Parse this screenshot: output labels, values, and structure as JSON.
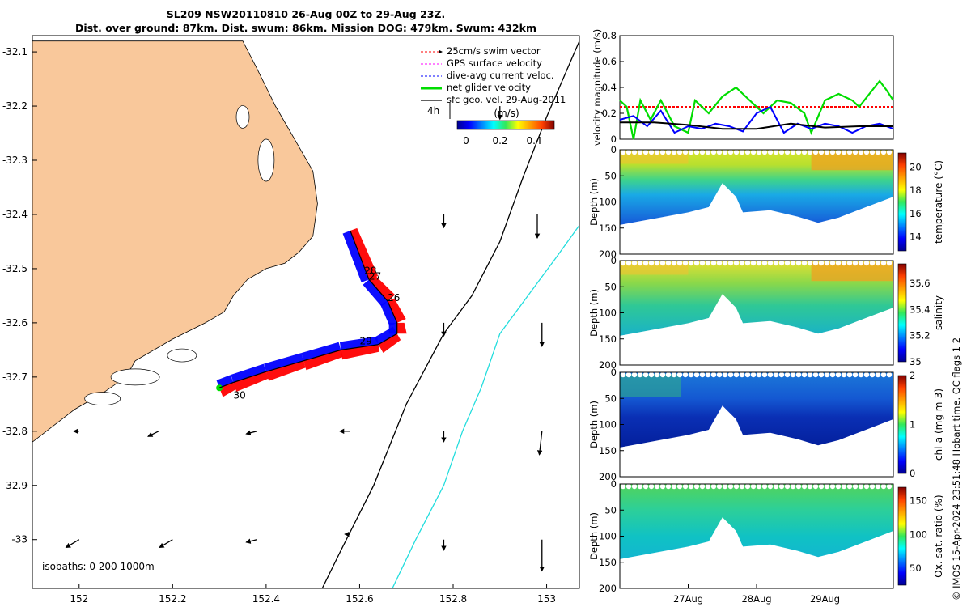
{
  "title": {
    "line1": "SL209 NSW20110810 26-Aug 00Z to 29-Aug 23Z.",
    "line2": "Dist. over ground: 87km. Dist. swum: 86km. Mission DOG: 479km. Swum: 432km"
  },
  "legend": {
    "items": [
      {
        "label": "25cm/s swim vector",
        "color": "#ff0000"
      },
      {
        "label": "GPS surface velocity",
        "color": "#ff00ff"
      },
      {
        "label": "dive-avg current veloc.",
        "color": "#0000ff"
      },
      {
        "label": "net glider velocity",
        "color": "#00dd00"
      },
      {
        "label": "sfc geo. vel. 29-Aug-2011",
        "color": "#000000"
      }
    ],
    "time_label": "4h",
    "colorbar_title": "(m/s)",
    "colorbar_ticks": [
      "0",
      "0.2",
      "0.4"
    ]
  },
  "map_footer": "isobaths: 0   200  1000m",
  "credit": "© IMOS 15-Apr-2024 23:51:48 Hobart time. QC flags 1  2",
  "colors": {
    "land": "#f9c89b",
    "track_red": "#ff0000",
    "track_blue": "#0000ff",
    "isobath_200": "#000000",
    "isobath_1000": "#22dddd"
  },
  "chart_data": [
    {
      "type": "map",
      "name": "glider track map",
      "xlim": [
        151.9,
        153.07
      ],
      "ylim": [
        -33.09,
        -32.07
      ],
      "x_ticks": [
        "152",
        "152.2",
        "152.4",
        "152.6",
        "152.8",
        "153"
      ],
      "x_tick_values": [
        152,
        152.2,
        152.4,
        152.6,
        152.8,
        153
      ],
      "y_ticks": [
        "-32.1",
        "-32.2",
        "-32.3",
        "-32.4",
        "-32.5",
        "-32.6",
        "-32.7",
        "-32.8",
        "-32.9",
        "-33"
      ],
      "y_tick_values": [
        -32.1,
        -32.2,
        -32.3,
        -32.4,
        -32.5,
        -32.6,
        -32.7,
        -32.8,
        -32.9,
        -33
      ],
      "coastline": [
        [
          151.9,
          -32.08
        ],
        [
          152.35,
          -32.08
        ],
        [
          152.38,
          -32.13
        ],
        [
          152.42,
          -32.2
        ],
        [
          152.46,
          -32.26
        ],
        [
          152.5,
          -32.32
        ],
        [
          152.51,
          -32.38
        ],
        [
          152.5,
          -32.44
        ],
        [
          152.47,
          -32.47
        ],
        [
          152.44,
          -32.49
        ],
        [
          152.4,
          -32.5
        ],
        [
          152.36,
          -32.52
        ],
        [
          152.33,
          -32.55
        ],
        [
          152.31,
          -32.58
        ],
        [
          152.27,
          -32.6
        ],
        [
          152.2,
          -32.63
        ],
        [
          152.12,
          -32.67
        ],
        [
          152.1,
          -32.7
        ],
        [
          152.05,
          -32.73
        ],
        [
          151.99,
          -32.76
        ],
        [
          151.9,
          -32.82
        ]
      ],
      "track": [
        [
          152.58,
          -32.43
        ],
        [
          152.62,
          -32.52
        ],
        [
          152.66,
          -32.56
        ],
        [
          152.68,
          -32.6
        ],
        [
          152.68,
          -32.62
        ],
        [
          152.64,
          -32.64
        ],
        [
          152.56,
          -32.65
        ],
        [
          152.48,
          -32.67
        ],
        [
          152.4,
          -32.69
        ],
        [
          152.33,
          -32.71
        ],
        [
          152.3,
          -32.72
        ]
      ],
      "track_labels": [
        {
          "text": "28",
          "lon": 152.61,
          "lat": -32.51
        },
        {
          "text": "27",
          "lon": 152.62,
          "lat": -32.52
        },
        {
          "text": "26",
          "lon": 152.66,
          "lat": -32.56
        },
        {
          "text": "29",
          "lon": 152.6,
          "lat": -32.64
        },
        {
          "text": "30",
          "lon": 152.33,
          "lat": -32.74
        }
      ],
      "isobath_200": [
        [
          152.52,
          -33.09
        ],
        [
          152.56,
          -33.02
        ],
        [
          152.63,
          -32.9
        ],
        [
          152.7,
          -32.75
        ],
        [
          152.78,
          -32.62
        ],
        [
          152.84,
          -32.55
        ],
        [
          152.9,
          -32.45
        ],
        [
          152.95,
          -32.33
        ],
        [
          153.0,
          -32.22
        ],
        [
          153.05,
          -32.12
        ],
        [
          153.07,
          -32.08
        ]
      ],
      "isobath_1000": [
        [
          152.67,
          -33.09
        ],
        [
          152.72,
          -33.0
        ],
        [
          152.78,
          -32.9
        ],
        [
          152.82,
          -32.8
        ],
        [
          152.86,
          -32.72
        ],
        [
          152.9,
          -32.62
        ],
        [
          152.96,
          -32.55
        ],
        [
          153.02,
          -32.48
        ],
        [
          153.07,
          -32.42
        ]
      ],
      "surface_vectors": [
        {
          "lon": 152.0,
          "lat": -33.0,
          "u": -0.05,
          "v": -0.03
        },
        {
          "lon": 152.2,
          "lat": -33.0,
          "u": -0.05,
          "v": -0.03
        },
        {
          "lon": 152.38,
          "lat": -33.0,
          "u": -0.04,
          "v": -0.01
        },
        {
          "lon": 152.58,
          "lat": -32.99,
          "u": -0.02,
          "v": 0.0
        },
        {
          "lon": 152.78,
          "lat": -33.0,
          "u": 0.0,
          "v": -0.04
        },
        {
          "lon": 152.99,
          "lat": -33.0,
          "u": 0.0,
          "v": -0.12
        },
        {
          "lon": 152.0,
          "lat": -32.8,
          "u": -0.02,
          "v": 0.0
        },
        {
          "lon": 152.17,
          "lat": -32.8,
          "u": -0.04,
          "v": -0.02
        },
        {
          "lon": 152.38,
          "lat": -32.8,
          "u": -0.04,
          "v": -0.01
        },
        {
          "lon": 152.58,
          "lat": -32.8,
          "u": -0.04,
          "v": 0.0
        },
        {
          "lon": 152.78,
          "lat": -32.8,
          "u": 0.0,
          "v": -0.04
        },
        {
          "lon": 152.99,
          "lat": -32.8,
          "u": -0.01,
          "v": -0.09
        },
        {
          "lon": 152.78,
          "lat": -32.6,
          "u": 0.0,
          "v": -0.05
        },
        {
          "lon": 152.99,
          "lat": -32.6,
          "u": 0.0,
          "v": -0.09
        },
        {
          "lon": 152.98,
          "lat": -32.4,
          "u": 0.0,
          "v": -0.09
        },
        {
          "lon": 152.78,
          "lat": -32.4,
          "u": 0.0,
          "v": -0.05
        },
        {
          "lon": 152.9,
          "lat": -32.2,
          "u": 0.0,
          "v": -0.05
        }
      ]
    },
    {
      "type": "line",
      "name": "velocity",
      "ylabel": "velocity magnitude (m/s)",
      "ylim": [
        0,
        0.8
      ],
      "y_ticks": [
        "0",
        "0.2",
        "0.4",
        "0.6",
        "0.8"
      ],
      "xlim": [
        0,
        4
      ],
      "series": [
        {
          "label": "swim",
          "color": "#ff0000",
          "dashed": true,
          "x": [
            0,
            4
          ],
          "y": [
            0.25,
            0.25
          ]
        },
        {
          "label": "net",
          "color": "#00dd00",
          "x": [
            0,
            0.1,
            0.2,
            0.3,
            0.45,
            0.6,
            0.8,
            1.0,
            1.1,
            1.3,
            1.5,
            1.7,
            1.9,
            2.1,
            2.3,
            2.5,
            2.7,
            2.8,
            3.0,
            3.2,
            3.4,
            3.5,
            3.65,
            3.8,
            3.9,
            4.0
          ],
          "y": [
            0.3,
            0.25,
            0.0,
            0.3,
            0.15,
            0.3,
            0.1,
            0.05,
            0.3,
            0.2,
            0.33,
            0.4,
            0.3,
            0.2,
            0.3,
            0.28,
            0.2,
            0.05,
            0.3,
            0.35,
            0.3,
            0.25,
            0.35,
            0.45,
            0.38,
            0.3
          ]
        },
        {
          "label": "current",
          "color": "#0000ff",
          "x": [
            0,
            0.2,
            0.4,
            0.6,
            0.8,
            1.0,
            1.2,
            1.4,
            1.6,
            1.8,
            2.0,
            2.2,
            2.4,
            2.6,
            2.8,
            3.0,
            3.2,
            3.4,
            3.6,
            3.8,
            4.0
          ],
          "y": [
            0.15,
            0.18,
            0.1,
            0.22,
            0.05,
            0.1,
            0.08,
            0.12,
            0.1,
            0.06,
            0.2,
            0.25,
            0.05,
            0.12,
            0.08,
            0.12,
            0.1,
            0.05,
            0.1,
            0.12,
            0.08
          ]
        },
        {
          "label": "surface",
          "color": "#000000",
          "x": [
            0,
            0.5,
            1.0,
            1.5,
            2.0,
            2.5,
            3.0,
            3.5,
            4.0
          ],
          "y": [
            0.13,
            0.13,
            0.11,
            0.08,
            0.08,
            0.12,
            0.09,
            0.1,
            0.1
          ]
        }
      ]
    },
    {
      "type": "heatmap",
      "name": "temperature",
      "ylabel": "Depth (m)",
      "ylim": [
        200,
        0
      ],
      "y_ticks": [
        "0",
        "50",
        "100",
        "150",
        "200"
      ],
      "colorbar_label": "temperature (°C)",
      "clim": [
        12.8,
        21.2
      ],
      "colorbar_ticks": [
        "14",
        "16",
        "18",
        "20"
      ]
    },
    {
      "type": "heatmap",
      "name": "salinity",
      "ylabel": "Depth (m)",
      "ylim": [
        200,
        0
      ],
      "y_ticks": [
        "0",
        "50",
        "100",
        "150",
        "200"
      ],
      "colorbar_label": "salinity",
      "clim": [
        35.0,
        35.75
      ],
      "colorbar_ticks": [
        "35",
        "35.2",
        "35.4",
        "35.6"
      ]
    },
    {
      "type": "heatmap",
      "name": "chl-a",
      "ylabel": "Depth (m)",
      "ylim": [
        200,
        0
      ],
      "y_ticks": [
        "0",
        "50",
        "100",
        "150",
        "200"
      ],
      "colorbar_label": "chl-a (mg m-3)",
      "clim": [
        0,
        2
      ],
      "colorbar_ticks": [
        "0",
        "1",
        "2"
      ]
    },
    {
      "type": "heatmap",
      "name": "oxygen",
      "ylabel": "Depth (m)",
      "ylim": [
        200,
        0
      ],
      "y_ticks": [
        "0",
        "50",
        "100",
        "150",
        "200"
      ],
      "colorbar_label": "Ox. sat. ratio (%)",
      "clim": [
        25,
        170
      ],
      "colorbar_ticks": [
        "50",
        "100",
        "150"
      ],
      "x_ticks": [
        "27Aug",
        "28Aug",
        "29Aug"
      ],
      "x_tick_values": [
        1,
        2,
        3
      ]
    }
  ]
}
